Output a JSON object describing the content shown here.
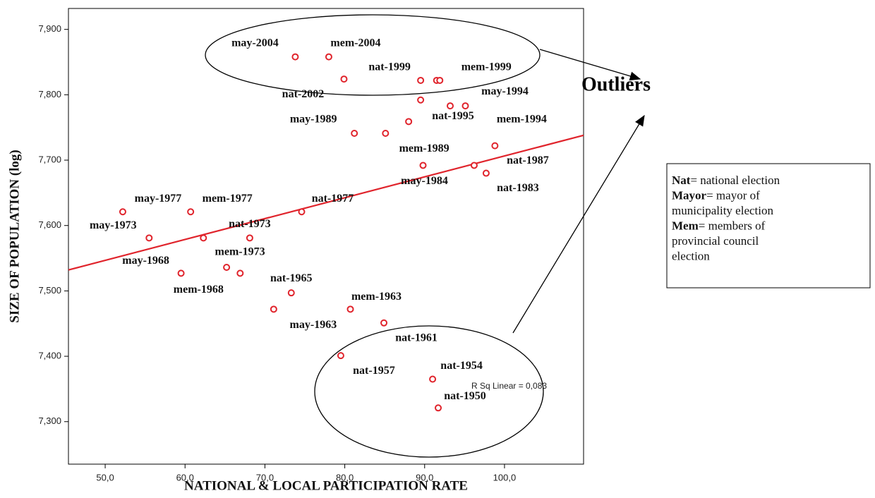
{
  "chart_data": {
    "type": "scatter",
    "x_label": "NATIONAL & LOCAL PARTICIPATION RATE",
    "y_label": "SIZE OF POPULATION (log)",
    "x": [
      73.8,
      78.0,
      79.9,
      89.5,
      91.5,
      91.9,
      89.5,
      93.2,
      95.1,
      81.2,
      85.1,
      88.0,
      98.8,
      89.8,
      96.2,
      97.7,
      52.2,
      60.7,
      74.6,
      55.5,
      62.3,
      68.1,
      59.5,
      65.2,
      66.9,
      73.3,
      71.1,
      80.7,
      84.9,
      79.5,
      91.0,
      91.7
    ],
    "values": [
      7.858,
      7.858,
      7.824,
      7.822,
      7.822,
      7.822,
      7.792,
      7.783,
      7.783,
      7.741,
      7.741,
      7.759,
      7.722,
      7.692,
      7.692,
      7.68,
      7.621,
      7.621,
      7.621,
      7.581,
      7.581,
      7.581,
      7.527,
      7.536,
      7.527,
      7.497,
      7.472,
      7.472,
      7.451,
      7.401,
      7.365,
      7.321
    ],
    "point_labels": [
      "may-2004",
      "mem-2004",
      "nat-2002",
      "nat-1999",
      null,
      "mem-1999",
      null,
      "nat-1995",
      "may-1994",
      "may-1989",
      null,
      "mem-1989",
      "mem-1994",
      "may-1984",
      "nat-1987",
      "nat-1983",
      "may-1977",
      "mem-1977",
      "nat-1977",
      "may-1973",
      null,
      "nat-1973",
      "may-1968",
      "mem-1973",
      "mem-1968",
      "nat-1965",
      "may-1963",
      "mem-1963",
      "nat-1961",
      "nat-1957",
      "nat-1954",
      "nat-1950"
    ],
    "color": "#e0242c",
    "fit_line": {
      "x": [
        45.4,
        109.9
      ],
      "y": [
        7.532,
        7.738
      ],
      "color": "#e0242c"
    },
    "fit_annotation": "R Sq Linear = 0,083",
    "xlim": [
      45.4,
      109.9
    ],
    "ylim": [
      7.235,
      7.932
    ],
    "xticks": [
      {
        "value": 50,
        "label": "50,0"
      },
      {
        "value": 60,
        "label": "60,0"
      },
      {
        "value": 70,
        "label": "70,0"
      },
      {
        "value": 80,
        "label": "80,0"
      },
      {
        "value": 90,
        "label": "90,0"
      },
      {
        "value": 100,
        "label": "100,0"
      }
    ],
    "yticks": [
      {
        "value": 7.3,
        "label": "7,300"
      },
      {
        "value": 7.4,
        "label": "7,400"
      },
      {
        "value": 7.5,
        "label": "7,500"
      },
      {
        "value": 7.6,
        "label": "7,600"
      },
      {
        "value": 7.7,
        "label": "7,700"
      },
      {
        "value": 7.8,
        "label": "7,800"
      },
      {
        "value": 7.9,
        "label": "7,900"
      }
    ],
    "outlier_label": "Outliers",
    "key": [
      {
        "term": "Nat",
        "text": "= national election"
      },
      {
        "term": "Mayor",
        "text": "= mayor of"
      },
      {
        "text": "municipality election"
      },
      {
        "term": "Mem",
        "text": "= members of"
      },
      {
        "text": "provincial council"
      },
      {
        "text": "election"
      }
    ]
  }
}
